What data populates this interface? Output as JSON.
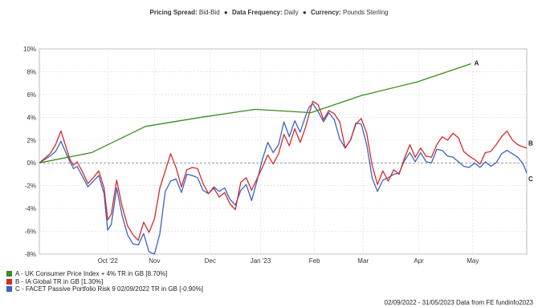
{
  "header": {
    "pricing_label": "Pricing Spread:",
    "pricing_value": "Bid-Bid",
    "frequency_label": "Data Frequency:",
    "frequency_value": "Daily",
    "currency_label": "Currency:",
    "currency_value": "Pounds Sterling",
    "separator": "●"
  },
  "footer": {
    "text": "02/09/2022 - 31/05/2023 Data from FE fundinfo2023"
  },
  "colors": {
    "A": "#3c8a1e",
    "B": "#d42a2a",
    "C": "#3b62c4",
    "grid": "#d8d8d8",
    "zero": "#777777"
  },
  "chart_data": {
    "type": "line",
    "title": "",
    "xlabel": "",
    "ylabel": "",
    "ylim": [
      -8,
      10
    ],
    "y_ticks": [
      -8,
      -6,
      -4,
      -2,
      0,
      2,
      4,
      6,
      8,
      10
    ],
    "y_tick_labels": [
      "-8%",
      "-6%",
      "-4%",
      "-2%",
      "0%",
      "2%",
      "4%",
      "6%",
      "8%",
      "10%"
    ],
    "x_range": [
      0,
      271
    ],
    "x_ticks": [
      {
        "day": 38,
        "label": "Oct '22"
      },
      {
        "day": 64,
        "label": "Nov"
      },
      {
        "day": 95,
        "label": "Dec"
      },
      {
        "day": 123,
        "label": "Jan '23"
      },
      {
        "day": 153,
        "label": "Feb"
      },
      {
        "day": 180,
        "label": "Mar"
      },
      {
        "day": 211,
        "label": "Apr"
      },
      {
        "day": 241,
        "label": "May"
      }
    ],
    "grid": true,
    "legend_position": "bottom-left",
    "series": [
      {
        "key": "A",
        "end_label": "A",
        "name": "A - UK Consumer Price Index + 4% TR in GB [8.70%]",
        "x": [
          0,
          29,
          59,
          90,
          120,
          151,
          179,
          210,
          240
        ],
        "y": [
          0,
          0.9,
          3.2,
          4.0,
          4.7,
          4.4,
          5.9,
          7.1,
          8.7
        ]
      },
      {
        "key": "B",
        "end_label": "B",
        "name": "B - IA Global TR in GB [1.30%]",
        "x": [
          0,
          3,
          6,
          9,
          12,
          15,
          17,
          19,
          21,
          24,
          27,
          30,
          33,
          36,
          38,
          40,
          43,
          46,
          49,
          52,
          55,
          58,
          61,
          64,
          67,
          70,
          73,
          76,
          79,
          82,
          85,
          88,
          91,
          94,
          97,
          100,
          103,
          106,
          109,
          112,
          115,
          118,
          121,
          124,
          127,
          130,
          133,
          136,
          139,
          142,
          145,
          148,
          150,
          152,
          155,
          158,
          161,
          164,
          167,
          170,
          173,
          176,
          179,
          182,
          185,
          188,
          191,
          194,
          197,
          200,
          203,
          206,
          209,
          212,
          215,
          218,
          221,
          224,
          227,
          230,
          233,
          236,
          239,
          242,
          245,
          248,
          251,
          254,
          257,
          260,
          263,
          266,
          269,
          271
        ],
        "y": [
          0,
          0.4,
          0.8,
          1.6,
          2.8,
          1.3,
          0.3,
          -0.2,
          0.1,
          -0.8,
          -1.8,
          -1.3,
          -0.7,
          -2.2,
          -5.0,
          -4.5,
          -1.5,
          -3.8,
          -5.5,
          -6.3,
          -6.8,
          -5.2,
          -6.1,
          -4.9,
          -2.2,
          -0.7,
          0.8,
          -0.4,
          -2.1,
          -0.6,
          -0.4,
          -0.5,
          -1.8,
          -2.7,
          -2.2,
          -3.0,
          -2.6,
          -3.6,
          -4.1,
          -1.7,
          -1.3,
          -2.4,
          -1.4,
          -0.4,
          0.7,
          -0.1,
          0.8,
          2.5,
          1.5,
          3.0,
          1.8,
          3.1,
          4.3,
          5.4,
          5.1,
          3.8,
          4.6,
          4.3,
          3.6,
          1.3,
          2.0,
          3.4,
          3.9,
          2.6,
          -0.2,
          -1.9,
          -0.7,
          -1.6,
          -0.6,
          -1.0,
          0.4,
          1.6,
          0.5,
          1.3,
          0.6,
          0.5,
          1.6,
          2.3,
          2.0,
          2.6,
          2.2,
          1.0,
          0.6,
          0.3,
          -0.1,
          0.9,
          1.0,
          1.6,
          2.3,
          2.8,
          2.0,
          1.6,
          1.4,
          1.3
        ]
      },
      {
        "key": "C",
        "end_label": "C",
        "name": "C - FACET Passive Portfolio Risk 9 02/09/2022 TR in GB [-0.90%]",
        "x": [
          0,
          3,
          6,
          9,
          12,
          15,
          17,
          19,
          21,
          24,
          27,
          30,
          33,
          36,
          38,
          40,
          43,
          46,
          49,
          52,
          55,
          58,
          61,
          64,
          67,
          70,
          73,
          76,
          79,
          82,
          85,
          88,
          91,
          94,
          97,
          100,
          103,
          106,
          109,
          112,
          115,
          118,
          121,
          124,
          127,
          130,
          133,
          136,
          139,
          142,
          145,
          148,
          150,
          152,
          155,
          158,
          161,
          164,
          167,
          170,
          173,
          176,
          179,
          182,
          185,
          188,
          191,
          194,
          197,
          200,
          203,
          206,
          209,
          212,
          215,
          218,
          221,
          224,
          227,
          230,
          233,
          236,
          239,
          242,
          245,
          248,
          251,
          254,
          257,
          260,
          263,
          266,
          269,
          271
        ],
        "y": [
          0,
          0.3,
          0.6,
          1.0,
          1.9,
          0.8,
          0.1,
          -0.5,
          -0.3,
          -1.2,
          -2.1,
          -1.6,
          -1.1,
          -2.7,
          -5.9,
          -5.4,
          -2.2,
          -4.6,
          -6.3,
          -7.1,
          -7.2,
          -6.2,
          -7.8,
          -8.0,
          -6.2,
          -2.5,
          -1.6,
          -1.4,
          -2.6,
          -1.0,
          -1.1,
          -1.3,
          -2.4,
          -2.7,
          -2.1,
          -2.5,
          -2.2,
          -3.2,
          -3.7,
          -2.4,
          -1.9,
          -3.3,
          -1.6,
          0.3,
          1.8,
          0.9,
          1.6,
          3.6,
          2.3,
          3.7,
          2.7,
          4.1,
          4.9,
          5.2,
          4.5,
          3.6,
          4.4,
          3.8,
          2.1,
          1.3,
          2.0,
          3.5,
          3.4,
          1.6,
          -1.3,
          -2.5,
          -1.5,
          -1.3,
          -1.0,
          -0.9,
          0.2,
          0.9,
          0.1,
          0.9,
          0.1,
          0.0,
          1.2,
          1.1,
          0.6,
          0.5,
          0.1,
          -0.3,
          -0.4,
          0.0,
          -0.4,
          0.1,
          -0.3,
          0.0,
          0.8,
          1.1,
          0.8,
          0.5,
          -0.1,
          -0.9
        ]
      }
    ]
  }
}
